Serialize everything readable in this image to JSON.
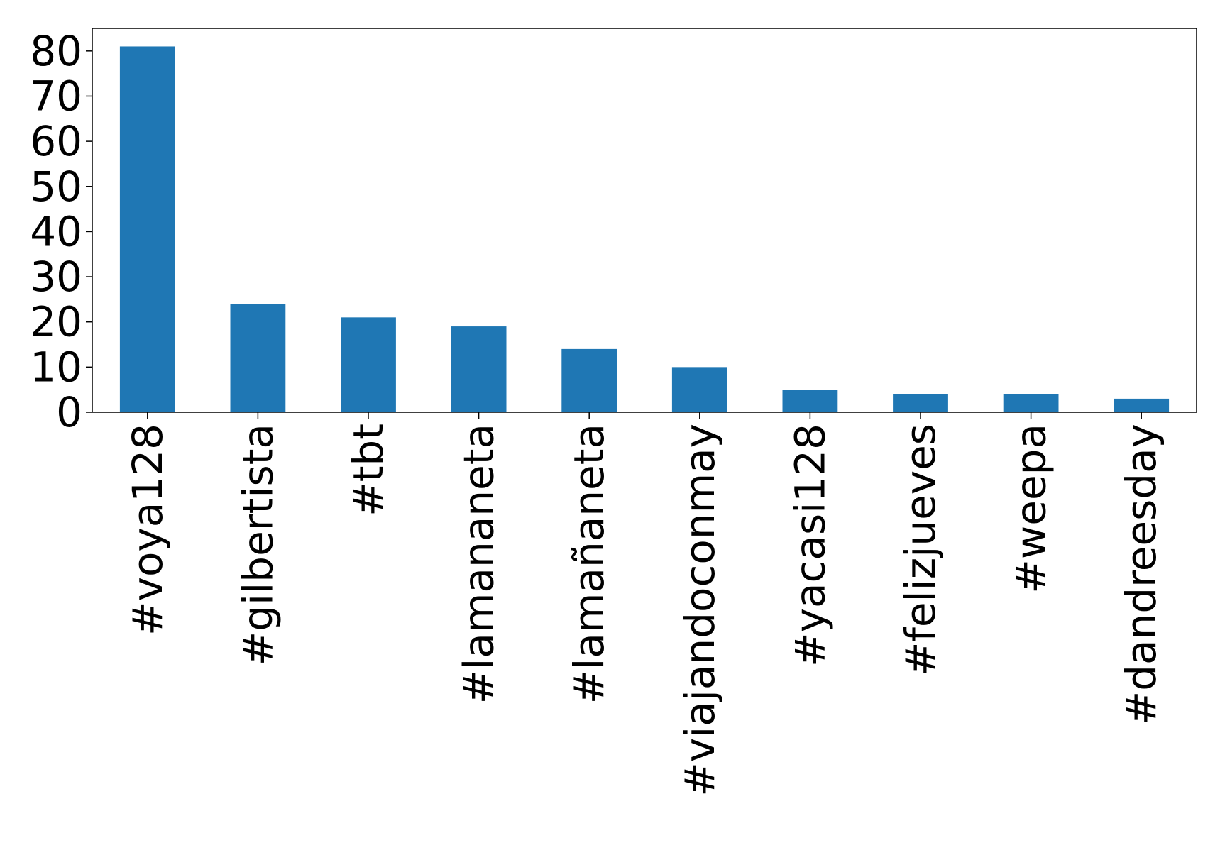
{
  "chart_data": {
    "type": "bar",
    "title": "",
    "xlabel": "",
    "ylabel": "",
    "categories": [
      "#voya128",
      "#gilbertista",
      "#tbt",
      "#lamananeta",
      "#lamañaneta",
      "#viajandoconmay",
      "#yacasi128",
      "#felizjueves",
      "#weepa",
      "#dandreesday"
    ],
    "values": [
      81,
      24,
      21,
      19,
      14,
      10,
      5,
      4,
      4,
      3
    ],
    "ylim": [
      0,
      85
    ],
    "yticks": [
      0,
      10,
      20,
      30,
      40,
      50,
      60,
      70,
      80
    ],
    "grid": false,
    "legend": "none",
    "bar_color": "#1f77b4"
  }
}
